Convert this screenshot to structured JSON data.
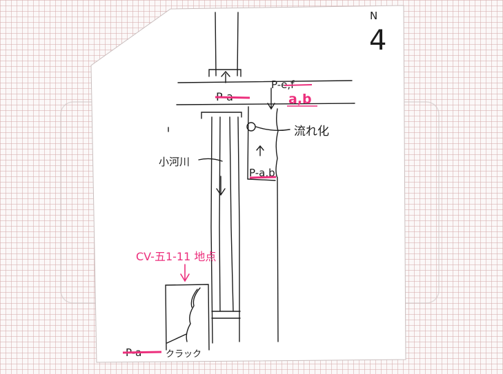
{
  "north": {
    "label": "N",
    "sheet_number": "4"
  },
  "labels": {
    "p_top_left": "P-",
    "p_top_left_struck": "a",
    "p_top_right": "P-",
    "p_top_right_struck": "e,f",
    "top_right_correction": "a,b",
    "junction_note": "流れ化",
    "river_label": "小河川",
    "p_mid": "P-",
    "p_mid_struck": "a,b",
    "crack_ref": "CV-五1-11 地点",
    "p_bottom": "P-",
    "p_bottom_struck": "a",
    "crack_label": "クラック"
  },
  "colors": {
    "paper": "#ffffff",
    "grid": "#d6aaaa",
    "ink": "#1c1c1c",
    "annotation": "#ec2f7c"
  }
}
